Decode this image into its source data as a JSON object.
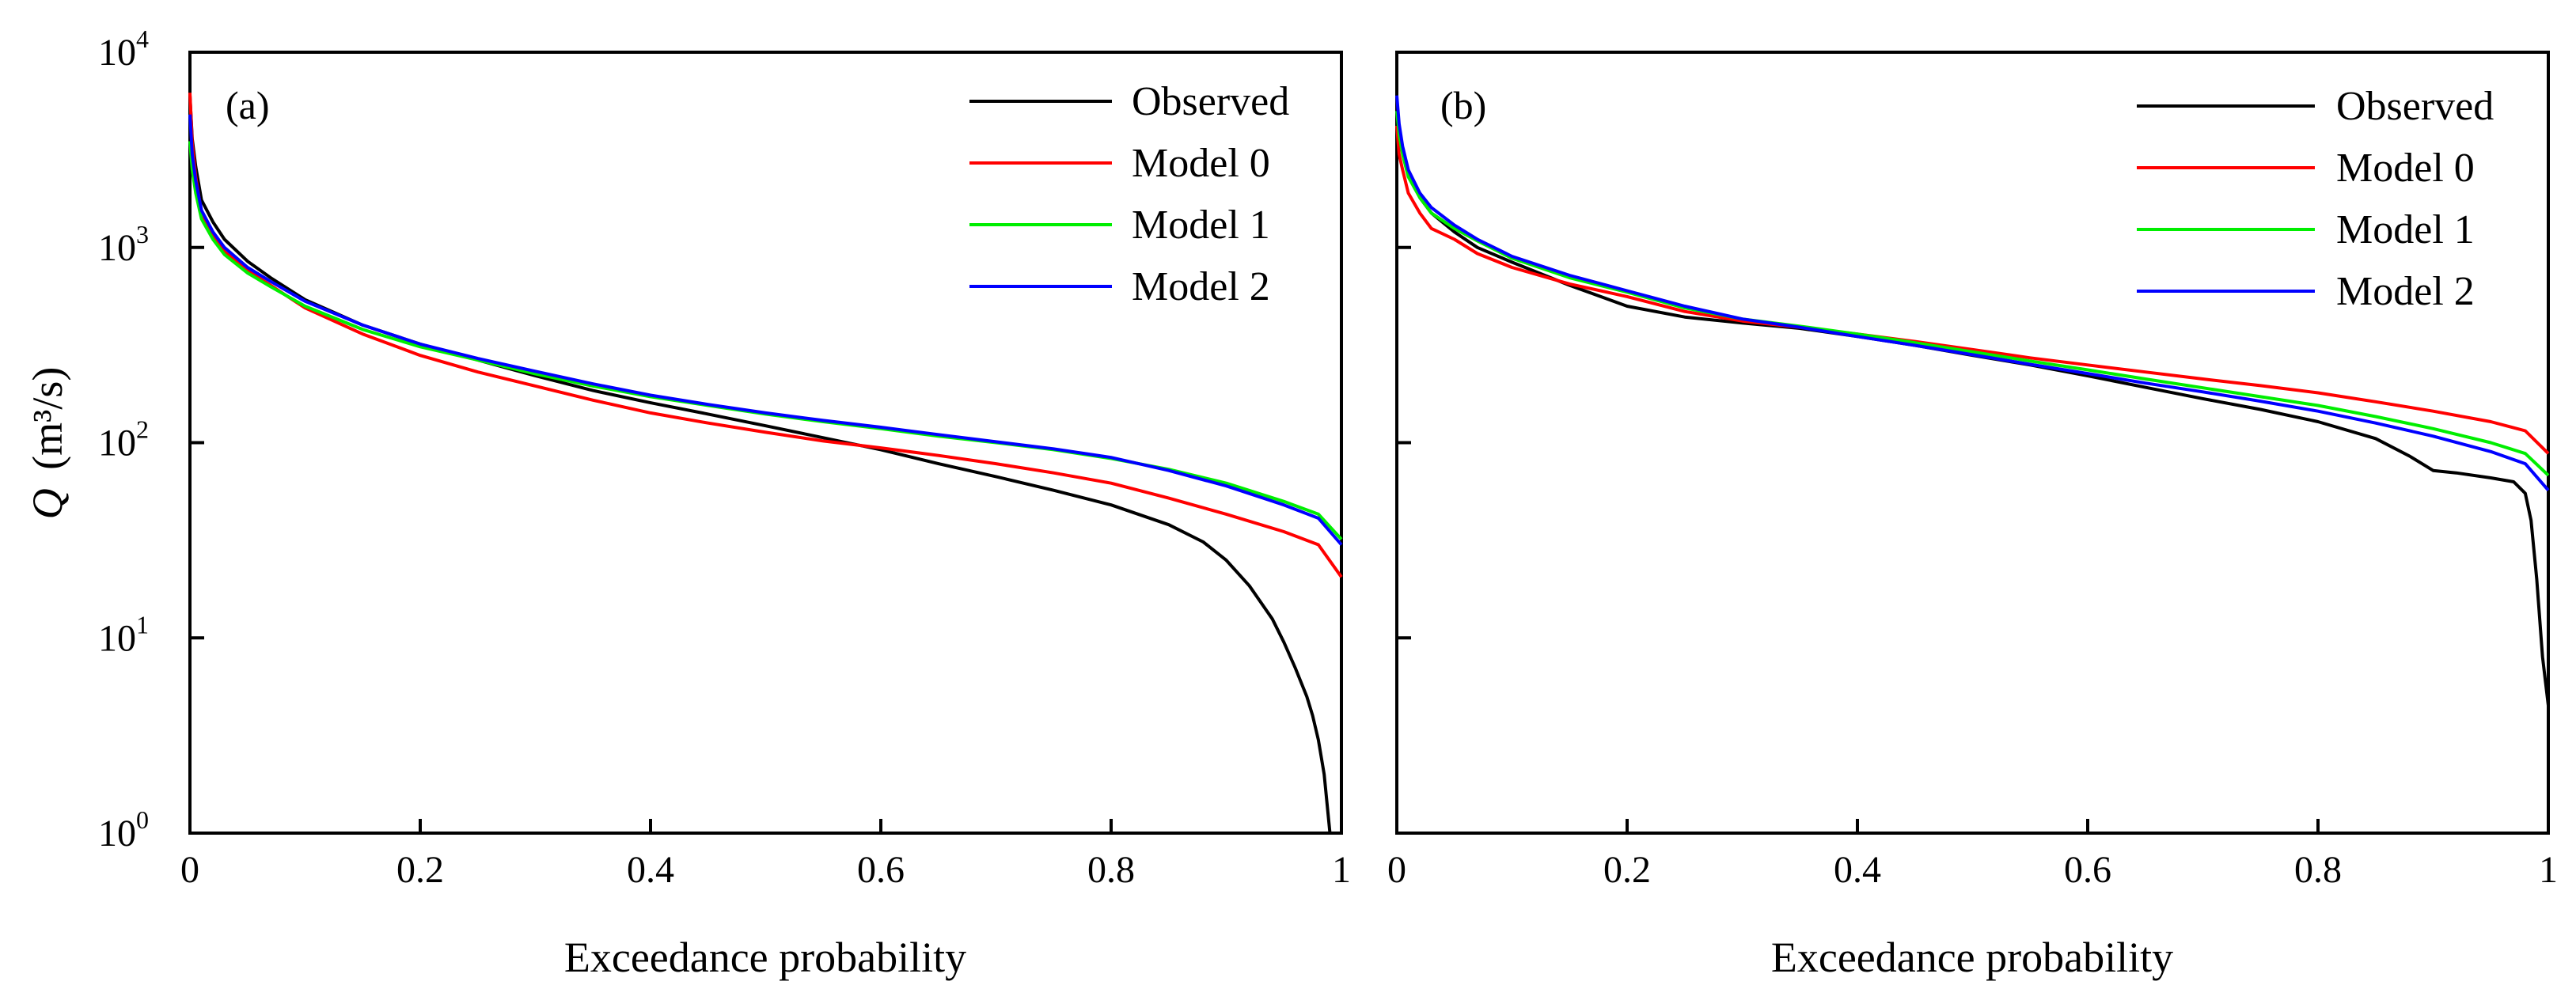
{
  "chart_data": [
    {
      "type": "line",
      "panel_label": "(a)",
      "xlabel": "Exceedance probability",
      "ylabel_main": "Q",
      "ylabel_unit": "(m³/s)",
      "y_scale": "log",
      "xlim": [
        0,
        1
      ],
      "ylim": [
        1,
        10000
      ],
      "x_ticks": [
        0,
        0.2,
        0.4,
        0.6,
        0.8,
        1
      ],
      "x_tick_labels": [
        "0",
        "0.2",
        "0.4",
        "0.6",
        "0.8",
        "1"
      ],
      "y_ticks": [
        1,
        10,
        100,
        1000,
        10000
      ],
      "y_tick_base": "10",
      "y_tick_exponents": [
        "0",
        "1",
        "2",
        "3",
        "4"
      ],
      "legend_position": "top-right",
      "series": [
        {
          "name": "Observed",
          "color": "#000000",
          "x": [
            0,
            0.002,
            0.005,
            0.01,
            0.02,
            0.03,
            0.05,
            0.07,
            0.1,
            0.15,
            0.2,
            0.25,
            0.3,
            0.35,
            0.4,
            0.45,
            0.5,
            0.55,
            0.6,
            0.65,
            0.7,
            0.75,
            0.8,
            0.85,
            0.88,
            0.9,
            0.92,
            0.94,
            0.95,
            0.96,
            0.97,
            0.975,
            0.98,
            0.985,
            0.99
          ],
          "y": [
            6000,
            3600,
            2600,
            1750,
            1350,
            1100,
            850,
            700,
            540,
            400,
            320,
            265,
            220,
            185,
            160,
            140,
            122,
            106,
            92,
            78,
            67,
            57,
            48,
            38,
            31,
            25,
            18.5,
            12.5,
            9.5,
            7,
            5,
            4,
            3,
            2,
            1
          ]
        },
        {
          "name": "Model 0",
          "color": "#ff0000",
          "x": [
            0,
            0.002,
            0.005,
            0.01,
            0.02,
            0.03,
            0.05,
            0.07,
            0.1,
            0.15,
            0.2,
            0.25,
            0.3,
            0.35,
            0.4,
            0.45,
            0.5,
            0.55,
            0.6,
            0.65,
            0.7,
            0.75,
            0.8,
            0.85,
            0.9,
            0.95,
            0.98,
            1.0
          ],
          "y": [
            6200,
            3400,
            2300,
            1500,
            1150,
            950,
            760,
            640,
            490,
            360,
            280,
            230,
            195,
            165,
            142,
            126,
            113,
            102,
            94,
            86,
            78,
            70,
            62,
            52,
            43,
            35,
            30,
            20.5
          ]
        },
        {
          "name": "Model 1",
          "color": "#00ee00",
          "x": [
            0,
            0.002,
            0.005,
            0.01,
            0.02,
            0.03,
            0.05,
            0.07,
            0.1,
            0.15,
            0.2,
            0.25,
            0.3,
            0.35,
            0.4,
            0.45,
            0.5,
            0.55,
            0.6,
            0.65,
            0.7,
            0.75,
            0.8,
            0.85,
            0.9,
            0.95,
            0.98,
            1.0
          ],
          "y": [
            3500,
            2500,
            1900,
            1400,
            1100,
            920,
            740,
            630,
            500,
            380,
            310,
            265,
            225,
            195,
            172,
            155,
            140,
            128,
            118,
            108,
            100,
            92,
            83,
            73,
            62,
            50,
            43,
            32
          ]
        },
        {
          "name": "Model 2",
          "color": "#0000ff",
          "x": [
            0,
            0.002,
            0.005,
            0.01,
            0.02,
            0.03,
            0.05,
            0.07,
            0.1,
            0.15,
            0.2,
            0.25,
            0.3,
            0.35,
            0.4,
            0.45,
            0.5,
            0.55,
            0.6,
            0.65,
            0.7,
            0.75,
            0.8,
            0.85,
            0.9,
            0.95,
            0.98,
            1.0
          ],
          "y": [
            4800,
            3000,
            2200,
            1550,
            1200,
            1000,
            790,
            670,
            530,
            400,
            320,
            270,
            232,
            200,
            175,
            157,
            142,
            130,
            120,
            110,
            101,
            93,
            84,
            72,
            60,
            48,
            41,
            30
          ]
        }
      ]
    },
    {
      "type": "line",
      "panel_label": "(b)",
      "xlabel": "Exceedance probability",
      "y_scale": "log",
      "xlim": [
        0,
        1
      ],
      "ylim": [
        1,
        10000
      ],
      "x_ticks": [
        0,
        0.2,
        0.4,
        0.6,
        0.8,
        1
      ],
      "x_tick_labels": [
        "0",
        "0.2",
        "0.4",
        "0.6",
        "0.8",
        "1"
      ],
      "y_ticks": [
        1,
        10,
        100,
        1000,
        10000
      ],
      "legend_position": "top-right",
      "series": [
        {
          "name": "Observed",
          "color": "#000000",
          "x": [
            0,
            0.002,
            0.005,
            0.01,
            0.02,
            0.03,
            0.05,
            0.07,
            0.1,
            0.15,
            0.2,
            0.25,
            0.3,
            0.35,
            0.4,
            0.45,
            0.5,
            0.55,
            0.6,
            0.65,
            0.7,
            0.75,
            0.8,
            0.85,
            0.88,
            0.9,
            0.92,
            0.95,
            0.97,
            0.98,
            0.985,
            0.99,
            0.995,
            1.0
          ],
          "y": [
            5500,
            4000,
            3200,
            2400,
            1800,
            1500,
            1200,
            1000,
            840,
            640,
            500,
            440,
            410,
            385,
            350,
            315,
            280,
            250,
            220,
            192,
            168,
            148,
            128,
            105,
            85,
            72,
            70,
            66,
            63,
            55,
            40,
            20,
            8,
            4.5
          ]
        },
        {
          "name": "Model 0",
          "color": "#ff0000",
          "x": [
            0,
            0.002,
            0.005,
            0.01,
            0.02,
            0.03,
            0.05,
            0.07,
            0.1,
            0.15,
            0.2,
            0.25,
            0.3,
            0.35,
            0.4,
            0.45,
            0.5,
            0.55,
            0.6,
            0.65,
            0.7,
            0.75,
            0.8,
            0.85,
            0.9,
            0.95,
            0.98,
            1.0
          ],
          "y": [
            4200,
            3000,
            2500,
            1900,
            1500,
            1250,
            1100,
            930,
            790,
            650,
            560,
            470,
            420,
            390,
            360,
            330,
            300,
            272,
            250,
            230,
            212,
            196,
            180,
            162,
            145,
            128,
            115,
            88
          ]
        },
        {
          "name": "Model 1",
          "color": "#00ee00",
          "x": [
            0,
            0.002,
            0.005,
            0.01,
            0.02,
            0.03,
            0.05,
            0.07,
            0.1,
            0.15,
            0.2,
            0.25,
            0.3,
            0.35,
            0.4,
            0.45,
            0.5,
            0.55,
            0.6,
            0.65,
            0.7,
            0.75,
            0.8,
            0.85,
            0.9,
            0.95,
            0.98,
            1.0
          ],
          "y": [
            5000,
            3800,
            3000,
            2300,
            1800,
            1500,
            1250,
            1080,
            880,
            700,
            590,
            490,
            430,
            395,
            360,
            325,
            292,
            262,
            236,
            212,
            191,
            172,
            155,
            136,
            118,
            100,
            88,
            68
          ]
        },
        {
          "name": "Model 2",
          "color": "#0000ff",
          "x": [
            0,
            0.002,
            0.005,
            0.01,
            0.02,
            0.03,
            0.05,
            0.07,
            0.1,
            0.15,
            0.2,
            0.25,
            0.3,
            0.35,
            0.4,
            0.45,
            0.5,
            0.55,
            0.6,
            0.65,
            0.7,
            0.75,
            0.8,
            0.85,
            0.9,
            0.95,
            0.98,
            1.0
          ],
          "y": [
            6000,
            4300,
            3300,
            2500,
            1900,
            1600,
            1300,
            1100,
            900,
            720,
            600,
            500,
            430,
            390,
            350,
            315,
            282,
            252,
            226,
            202,
            182,
            163,
            145,
            126,
            108,
            90,
            78,
            57
          ]
        }
      ]
    }
  ]
}
